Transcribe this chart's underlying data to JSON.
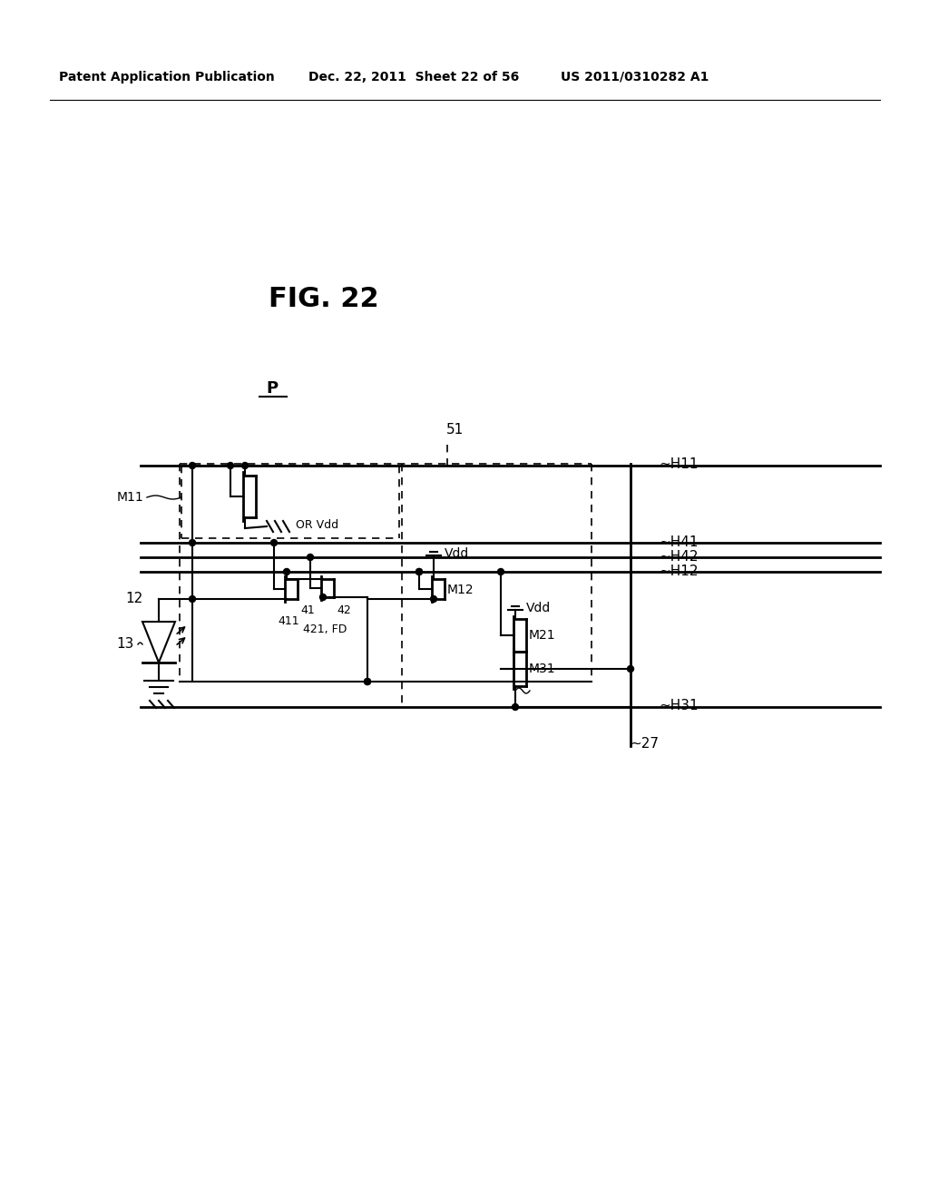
{
  "header_left": "Patent Application Publication",
  "header_mid": "Dec. 22, 2011  Sheet 22 of 56",
  "header_right": "US 2011/0310282 A1",
  "fig_label": "FIG. 22",
  "bg_color": "#ffffff"
}
